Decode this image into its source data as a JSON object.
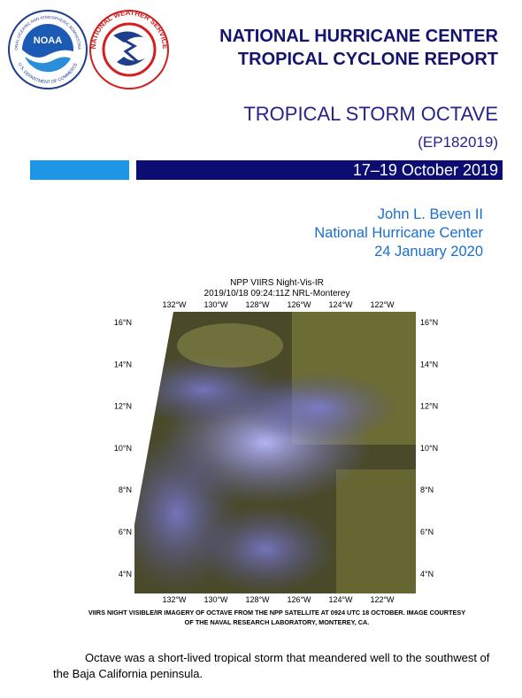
{
  "header": {
    "title_line1": "NATIONAL HURRICANE CENTER",
    "title_line2": "TROPICAL CYCLONE REPORT",
    "noaa_logo": {
      "name": "NOAA",
      "ring_top": "NATIONAL OCEANIC AND ATMOSPHERIC ADMINISTRATION",
      "ring_bottom": "U.S. DEPARTMENT OF COMMERCE"
    },
    "nws_logo": {
      "ring": "NATIONAL WEATHER SERVICE"
    }
  },
  "storm": {
    "name": "TROPICAL STORM OCTAVE",
    "id": "(EP182019)",
    "dates": "17–19 October 2019"
  },
  "author": {
    "name": "John L. Beven II",
    "organization": "National Hurricane Center",
    "date": "24 January 2020"
  },
  "figure": {
    "title_line1": "NPP VIIRS Night-Vis-IR",
    "title_line2": "2019/10/18 09:24:11Z NRL-Monterey",
    "longitudes": [
      "132°W",
      "130°W",
      "128°W",
      "126°W",
      "124°W",
      "122°W"
    ],
    "latitudes": [
      "16°N",
      "14°N",
      "12°N",
      "10°N",
      "8°N",
      "6°N",
      "4°N"
    ],
    "caption_line1": "VIIRS NIGHT VISIBLE/IR IMAGERY OF OCTAVE FROM THE NPP SATELLITE AT 0924 UTC 18 OCTOBER.  IMAGE COURTESY",
    "caption_line2": "OF THE NAVAL RESEARCH LABORATORY, MONTEREY, CA."
  },
  "body": {
    "paragraph": "Octave was a short-lived tropical storm that meandered well to the southwest of the Baja California peninsula."
  }
}
